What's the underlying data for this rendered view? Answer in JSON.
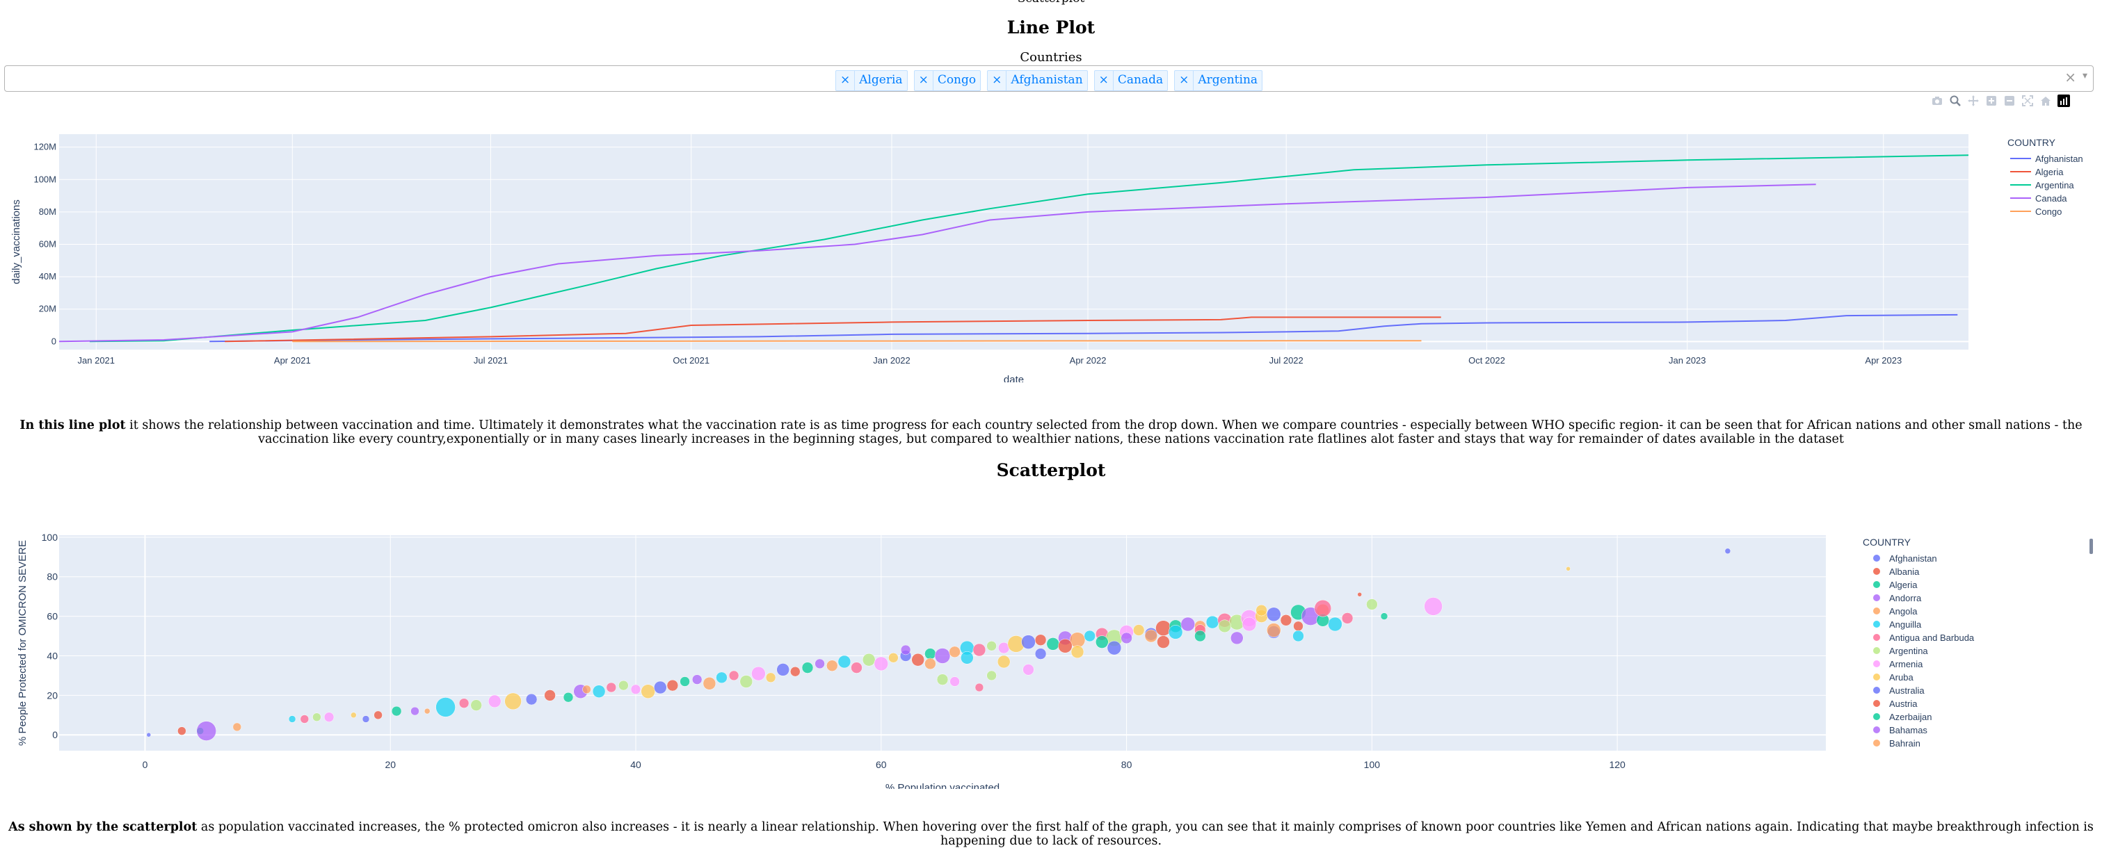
{
  "top_cut_text": "Scatterplot",
  "line_section": {
    "heading": "Line Plot",
    "dropdown_label": "Countries",
    "selected": [
      "Algeria",
      "Congo",
      "Afghanistan",
      "Canada",
      "Argentina"
    ],
    "clear_symbol": "×",
    "arrow_symbol": "▾",
    "chip_remove_symbol": "×"
  },
  "modebar": {
    "icons": [
      "camera-icon",
      "zoom-icon",
      "pan-icon",
      "zoom-in-icon",
      "zoom-out-icon",
      "autoscale-icon",
      "reset-axes-icon",
      "plotly-logo-icon"
    ]
  },
  "line_paragraph": {
    "bold": "In this line plot",
    "text": " it shows the relationship between vaccination and time. Ultimately it demonstrates what the vaccination rate is as time progress for each country selected from the drop down. When we compare countries - especially between WHO specific region- it can be seen that for African nations and other small nations - the vaccination like every country,exponentially or in many cases linearly increases in the beginning stages, but compared to wealthier nations, these nations vaccination rate flatlines alot faster and stays that way for remainder of dates available in the dataset"
  },
  "scatter_section": {
    "heading": "Scatterplot"
  },
  "scatter_paragraph": {
    "bold": "As shown by the scatterplot",
    "text": " as population vaccinated increases, the % protected omicron also increases - it is nearly a linear relationship. When hovering over the first half of the graph, you can see that it mainly comprises of known poor countries like Yemen and African nations again. Indicating that maybe breakthrough infection is happening due to lack of resources."
  },
  "chart_data": [
    {
      "type": "line",
      "xlabel": "date",
      "ylabel": "daily_vaccinations",
      "legend_title": "COUNTRY",
      "legend_position": "top-right",
      "grid": true,
      "background": "#e5ecf6",
      "xlim": [
        "2020-12-15",
        "2023-05-10"
      ],
      "ylim": [
        -5000000,
        128000000
      ],
      "x_ticks": [
        "2021-01-01",
        "2021-04-01",
        "2021-07-01",
        "2021-10-01",
        "2022-01-01",
        "2022-04-01",
        "2022-07-01",
        "2022-10-01",
        "2023-01-01",
        "2023-04-01"
      ],
      "x_tick_labels": [
        "Jan 2021",
        "Apr 2021",
        "Jul 2021",
        "Oct 2021",
        "Jan 2022",
        "Apr 2022",
        "Jul 2022",
        "Oct 2022",
        "Jan 2023",
        "Apr 2023"
      ],
      "y_ticks": [
        0,
        20000000,
        40000000,
        60000000,
        80000000,
        100000000,
        120000000
      ],
      "y_tick_labels": [
        "0",
        "20M",
        "40M",
        "60M",
        "80M",
        "100M",
        "120M"
      ],
      "series": [
        {
          "name": "Afghanistan",
          "color": "#636efa",
          "points": [
            [
              "2021-02-22",
              0
            ],
            [
              "2021-05-01",
              1000000
            ],
            [
              "2021-08-01",
              2000000
            ],
            [
              "2021-11-01",
              3000000
            ],
            [
              "2022-01-01",
              4500000
            ],
            [
              "2022-04-01",
              5000000
            ],
            [
              "2022-06-01",
              5500000
            ],
            [
              "2022-07-01",
              6000000
            ],
            [
              "2022-07-25",
              6500000
            ],
            [
              "2022-08-15",
              9500000
            ],
            [
              "2022-09-01",
              11000000
            ],
            [
              "2022-10-01",
              11500000
            ],
            [
              "2023-01-01",
              12000000
            ],
            [
              "2023-02-15",
              13000000
            ],
            [
              "2023-03-15",
              16000000
            ],
            [
              "2023-05-05",
              16500000
            ]
          ]
        },
        {
          "name": "Algeria",
          "color": "#ef553b",
          "points": [
            [
              "2021-03-01",
              0
            ],
            [
              "2021-07-01",
              3000000
            ],
            [
              "2021-09-01",
              5000000
            ],
            [
              "2021-10-01",
              10000000
            ],
            [
              "2021-11-15",
              11000000
            ],
            [
              "2022-01-01",
              12000000
            ],
            [
              "2022-04-01",
              13000000
            ],
            [
              "2022-06-01",
              13500000
            ],
            [
              "2022-06-15",
              15000000
            ],
            [
              "2022-09-10",
              15000000
            ]
          ]
        },
        {
          "name": "Argentina",
          "color": "#00cc96",
          "points": [
            [
              "2020-12-29",
              0
            ],
            [
              "2021-02-01",
              500000
            ],
            [
              "2021-04-01",
              7000000
            ],
            [
              "2021-06-01",
              13000000
            ],
            [
              "2021-07-01",
              21000000
            ],
            [
              "2021-08-15",
              35000000
            ],
            [
              "2021-09-15",
              45000000
            ],
            [
              "2021-10-15",
              53000000
            ],
            [
              "2021-12-01",
              63000000
            ],
            [
              "2022-01-15",
              75000000
            ],
            [
              "2022-02-15",
              82000000
            ],
            [
              "2022-04-01",
              91000000
            ],
            [
              "2022-06-01",
              98000000
            ],
            [
              "2022-08-01",
              106000000
            ],
            [
              "2022-10-01",
              109000000
            ],
            [
              "2023-01-01",
              112000000
            ],
            [
              "2023-05-10",
              115000000
            ]
          ]
        },
        {
          "name": "Canada",
          "color": "#ab63fa",
          "points": [
            [
              "2020-12-15",
              0
            ],
            [
              "2021-02-01",
              1000000
            ],
            [
              "2021-04-01",
              6000000
            ],
            [
              "2021-05-01",
              15000000
            ],
            [
              "2021-06-01",
              29000000
            ],
            [
              "2021-07-01",
              40000000
            ],
            [
              "2021-08-01",
              48000000
            ],
            [
              "2021-09-15",
              53000000
            ],
            [
              "2021-11-01",
              56000000
            ],
            [
              "2021-12-15",
              60000000
            ],
            [
              "2022-01-15",
              66000000
            ],
            [
              "2022-02-15",
              75000000
            ],
            [
              "2022-04-01",
              80000000
            ],
            [
              "2022-07-01",
              85000000
            ],
            [
              "2022-10-01",
              89000000
            ],
            [
              "2023-01-01",
              95000000
            ],
            [
              "2023-03-01",
              97000000
            ]
          ]
        },
        {
          "name": "Congo",
          "color": "#ffa15a",
          "points": [
            [
              "2021-04-01",
              0
            ],
            [
              "2021-08-01",
              200000
            ],
            [
              "2022-01-01",
              300000
            ],
            [
              "2022-04-01",
              400000
            ],
            [
              "2022-07-01",
              450000
            ],
            [
              "2022-09-01",
              500000
            ]
          ]
        }
      ]
    },
    {
      "type": "scatter",
      "xlabel": "% Population vaccinated",
      "ylabel": "% People Protected for OMICRON SEVERE",
      "legend_title": "COUNTRY",
      "legend_position": "right",
      "grid": true,
      "background": "#e5ecf6",
      "xlim": [
        -7,
        137
      ],
      "ylim": [
        -8,
        101
      ],
      "x_ticks": [
        0,
        20,
        40,
        60,
        80,
        100,
        120
      ],
      "y_ticks": [
        0,
        20,
        40,
        60,
        80,
        100
      ],
      "legend": [
        {
          "name": "Afghanistan",
          "color": "#636efa"
        },
        {
          "name": "Albania",
          "color": "#ef553b"
        },
        {
          "name": "Algeria",
          "color": "#00cc96"
        },
        {
          "name": "Andorra",
          "color": "#ab63fa"
        },
        {
          "name": "Angola",
          "color": "#ffa15a"
        },
        {
          "name": "Anguilla",
          "color": "#19d3f3"
        },
        {
          "name": "Antigua and Barbuda",
          "color": "#ff6692"
        },
        {
          "name": "Argentina",
          "color": "#b6e880"
        },
        {
          "name": "Armenia",
          "color": "#ff97ff"
        },
        {
          "name": "Aruba",
          "color": "#fecb52"
        },
        {
          "name": "Australia",
          "color": "#636efa"
        },
        {
          "name": "Austria",
          "color": "#ef553b"
        },
        {
          "name": "Azerbaijan",
          "color": "#00cc96"
        },
        {
          "name": "Bahamas",
          "color": "#ab63fa"
        },
        {
          "name": "Bahrain",
          "color": "#ffa15a"
        }
      ],
      "points": [
        [
          0.3,
          0,
          3
        ],
        [
          3,
          2,
          6
        ],
        [
          4.5,
          2,
          5
        ],
        [
          5,
          2,
          14
        ],
        [
          7.5,
          4,
          6
        ],
        [
          12,
          8,
          5
        ],
        [
          13,
          8,
          6
        ],
        [
          14,
          9,
          6
        ],
        [
          15,
          9,
          7
        ],
        [
          17,
          10,
          4
        ],
        [
          18,
          8,
          5
        ],
        [
          19,
          10,
          6
        ],
        [
          20.5,
          12,
          7
        ],
        [
          22,
          12,
          6
        ],
        [
          23,
          12,
          4
        ],
        [
          24.5,
          14,
          14
        ],
        [
          26,
          16,
          7
        ],
        [
          27,
          15,
          8
        ],
        [
          28.5,
          17,
          9
        ],
        [
          30,
          17,
          12
        ],
        [
          31.5,
          18,
          8
        ],
        [
          33,
          20,
          8
        ],
        [
          34.5,
          19,
          7
        ],
        [
          35.5,
          22,
          10
        ],
        [
          36,
          23,
          6
        ],
        [
          37,
          22,
          9
        ],
        [
          38,
          24,
          7
        ],
        [
          39,
          25,
          7
        ],
        [
          40,
          23,
          7
        ],
        [
          41,
          22,
          10
        ],
        [
          42,
          24,
          9
        ],
        [
          43,
          25,
          8
        ],
        [
          44,
          27,
          7
        ],
        [
          45,
          28,
          7
        ],
        [
          46,
          26,
          9
        ],
        [
          47,
          29,
          8
        ],
        [
          48,
          30,
          7
        ],
        [
          49,
          27,
          9
        ],
        [
          50,
          31,
          10
        ],
        [
          51,
          29,
          7
        ],
        [
          52,
          33,
          9
        ],
        [
          53,
          32,
          7
        ],
        [
          54,
          34,
          8
        ],
        [
          55,
          36,
          7
        ],
        [
          56,
          35,
          8
        ],
        [
          57,
          37,
          9
        ],
        [
          58,
          34,
          8
        ],
        [
          59,
          38,
          9
        ],
        [
          60,
          36,
          10
        ],
        [
          61,
          39,
          7
        ],
        [
          62,
          40,
          8
        ],
        [
          63,
          38,
          9
        ],
        [
          64,
          41,
          8
        ],
        [
          65,
          40,
          11
        ],
        [
          66,
          42,
          8
        ],
        [
          67,
          44,
          10
        ],
        [
          68,
          43,
          9
        ],
        [
          69,
          45,
          7
        ],
        [
          70,
          44,
          8
        ],
        [
          71,
          46,
          12
        ],
        [
          72,
          47,
          10
        ],
        [
          73,
          48,
          8
        ],
        [
          74,
          46,
          9
        ],
        [
          75,
          49,
          10
        ],
        [
          76,
          48,
          11
        ],
        [
          77,
          50,
          8
        ],
        [
          78,
          51,
          9
        ],
        [
          79,
          49,
          12
        ],
        [
          80,
          52,
          10
        ],
        [
          81,
          53,
          8
        ],
        [
          82,
          51,
          9
        ],
        [
          83,
          54,
          11
        ],
        [
          84,
          55,
          9
        ],
        [
          85,
          56,
          10
        ],
        [
          86,
          55,
          8
        ],
        [
          87,
          57,
          9
        ],
        [
          88,
          58,
          10
        ],
        [
          89,
          57,
          11
        ],
        [
          90,
          59,
          12
        ],
        [
          91,
          60,
          9
        ],
        [
          92,
          61,
          10
        ],
        [
          93,
          58,
          8
        ],
        [
          94,
          62,
          11
        ],
        [
          95,
          60,
          13
        ],
        [
          96,
          63,
          9
        ],
        [
          97,
          56,
          10
        ],
        [
          98,
          59,
          8
        ],
        [
          65,
          28,
          8
        ],
        [
          66,
          27,
          7
        ],
        [
          70,
          37,
          9
        ],
        [
          73,
          41,
          8
        ],
        [
          75,
          45,
          10
        ],
        [
          78,
          47,
          9
        ],
        [
          80,
          49,
          8
        ],
        [
          82,
          50,
          9
        ],
        [
          84,
          52,
          10
        ],
        [
          86,
          53,
          8
        ],
        [
          88,
          55,
          9
        ],
        [
          90,
          56,
          10
        ],
        [
          91,
          63,
          8
        ],
        [
          92,
          52,
          9
        ],
        [
          94,
          55,
          7
        ],
        [
          96,
          58,
          9
        ],
        [
          62,
          43,
          7
        ],
        [
          64,
          36,
          8
        ],
        [
          67,
          39,
          9
        ],
        [
          68,
          24,
          6
        ],
        [
          69,
          30,
          7
        ],
        [
          72,
          33,
          8
        ],
        [
          76,
          42,
          9
        ],
        [
          79,
          44,
          10
        ],
        [
          83,
          47,
          9
        ],
        [
          86,
          50,
          8
        ],
        [
          89,
          49,
          9
        ],
        [
          92,
          53,
          10
        ],
        [
          94,
          50,
          8
        ],
        [
          96,
          64,
          12
        ],
        [
          100,
          66,
          8
        ],
        [
          105,
          65,
          13
        ],
        [
          116,
          84,
          3
        ],
        [
          129,
          93,
          4
        ],
        [
          99,
          71,
          3
        ],
        [
          101,
          60,
          5
        ]
      ]
    }
  ]
}
